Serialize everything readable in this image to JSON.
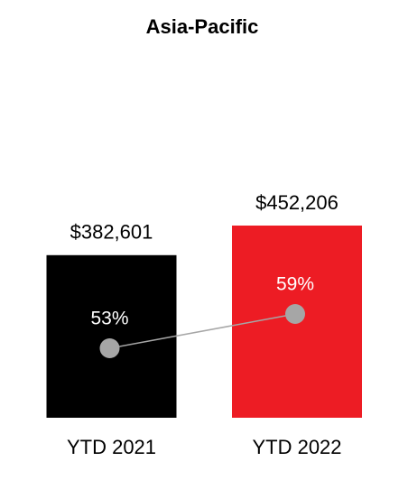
{
  "chart_data": {
    "type": "bar",
    "title": "Asia-Pacific",
    "categories": [
      "YTD 2021",
      "YTD 2022"
    ],
    "series": [
      {
        "type": "bar",
        "colors": [
          "#000000",
          "#ed1c24"
        ],
        "values": [
          382601,
          452206
        ],
        "value_labels": [
          "$382,601",
          "$452,206"
        ]
      },
      {
        "type": "line",
        "color": "#a6a6a6",
        "values": [
          53,
          59
        ],
        "value_labels": [
          "53%",
          "59%"
        ]
      }
    ]
  }
}
